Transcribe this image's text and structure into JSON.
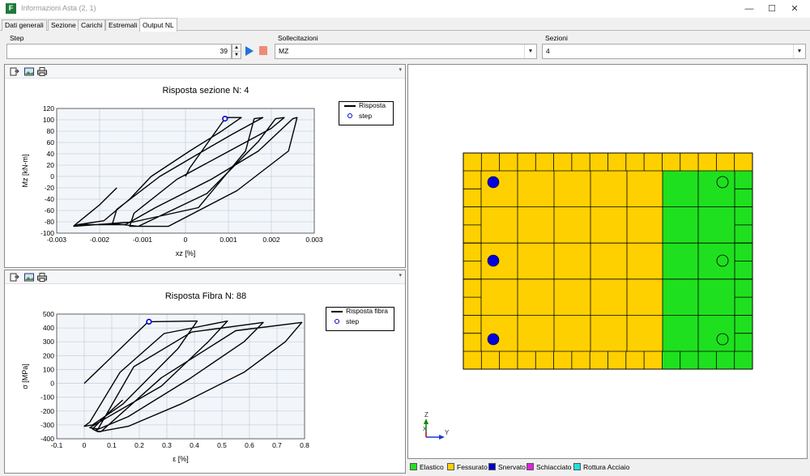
{
  "window": {
    "title": "Informazioni Asta (2, 1)",
    "icon": "F"
  },
  "tabs": [
    "Dati generali",
    "Sezione",
    "Carichi",
    "Estremali",
    "Output NL"
  ],
  "active_tab": "Output NL",
  "controls": {
    "step_label": "Step",
    "step_value": "39",
    "sollecitazioni_label": "Sollecitazioni",
    "sollecitazioni_value": "MZ",
    "sezioni_label": "Sezioni",
    "sezioni_value": "4"
  },
  "chart_data": [
    {
      "type": "line",
      "title": "Risposta sezione N: 4",
      "xlabel": "xz [%]",
      "ylabel": "Mz [kN-m]",
      "xlim": [
        -0.003,
        0.003
      ],
      "ylim": [
        -100,
        120
      ],
      "xticks": [
        "-0.003",
        "-0.002",
        "-0.001",
        "0",
        "0.001",
        "0.002",
        "0.003"
      ],
      "yticks": [
        "120",
        "100",
        "80",
        "60",
        "40",
        "20",
        "0",
        "-20",
        "-40",
        "-60",
        "-80",
        "-100"
      ],
      "legend_position": "top-right",
      "series": [
        {
          "name": "Risposta",
          "color": "#000000",
          "x": [
            0,
            0.0001,
            0.0009,
            0.0009,
            0.0013,
            0.0008,
            0.0001,
            -0.0008,
            -0.0013,
            -0.0019,
            -0.0025,
            -0.0026,
            -0.0019,
            -0.0012,
            0.0003,
            0.0014,
            0.0016,
            0.0018,
            0.0011,
            0.0003,
            -0.0006,
            -0.0016,
            -0.0017,
            -0.0011,
            0.0005,
            0.0017,
            0.0021,
            0.0023,
            0.002,
            0.0009,
            -0.0002,
            -0.0012,
            -0.0013,
            -0.0004,
            0.0012,
            0.0024,
            0.0026,
            0.0025,
            0.0017,
            0.0006,
            -0.0007,
            -0.0014,
            -0.0019,
            -0.0025,
            -0.0026,
            -0.002,
            -0.0016
          ],
          "y": [
            0,
            15,
            100,
            104,
            104,
            78,
            45,
            0,
            -40,
            -78,
            -85,
            -88,
            -84,
            -80,
            -55,
            45,
            102,
            104,
            75,
            40,
            0,
            -58,
            -83,
            -88,
            -30,
            62,
            102,
            104,
            85,
            40,
            -5,
            -65,
            -88,
            -88,
            -25,
            45,
            104,
            102,
            45,
            -5,
            -55,
            -85,
            -85,
            -85,
            -87,
            -50,
            -20
          ]
        }
      ],
      "step": {
        "name": "step",
        "x": 0.00092,
        "y": 102,
        "color": "#0000cc"
      }
    },
    {
      "type": "line",
      "title": "Risposta Fibra N: 88",
      "xlabel": "ε [%]",
      "ylabel": "σ [MPa]",
      "xlim": [
        -0.1,
        0.8
      ],
      "ylim": [
        -400,
        500
      ],
      "xticks": [
        "-0.1",
        "0",
        "0.1",
        "0.2",
        "0.3",
        "0.4",
        "0.5",
        "0.6",
        "0.7",
        "0.8"
      ],
      "yticks": [
        "500",
        "400",
        "300",
        "200",
        "100",
        "0",
        "-100",
        "-200",
        "-300",
        "-400"
      ],
      "legend_position": "top-right",
      "series": [
        {
          "name": "Risposta fibra",
          "color": "#000000",
          "x": [
            0.0,
            0.23,
            0.24,
            0.41,
            0.34,
            0.14,
            0.03,
            0.0,
            0.02,
            0.13,
            0.29,
            0.52,
            0.45,
            0.28,
            0.08,
            0.02,
            0.05,
            0.18,
            0.39,
            0.65,
            0.58,
            0.38,
            0.16,
            0.04,
            0.06,
            0.28,
            0.55,
            0.79,
            0.73,
            0.58,
            0.35,
            0.16,
            0.05,
            0.03,
            0.09,
            0.14
          ],
          "y": [
            0,
            440,
            445,
            450,
            250,
            -150,
            -300,
            -310,
            -280,
            80,
            360,
            450,
            300,
            -20,
            -250,
            -320,
            -330,
            120,
            370,
            440,
            300,
            30,
            -240,
            -340,
            -350,
            40,
            380,
            440,
            300,
            80,
            -150,
            -310,
            -350,
            -330,
            -210,
            -120
          ]
        }
      ],
      "step": {
        "name": "step",
        "x": 0.235,
        "y": 445,
        "color": "#0000cc"
      }
    }
  ],
  "section_view": {
    "axis_labels": {
      "vertical": "Z",
      "horizontal": "Y",
      "origin": "X"
    },
    "colors": {
      "fessurato": "#ffd000",
      "elastico": "#1fe01f",
      "snervato": "#0000dd",
      "grid": "#000000"
    }
  },
  "legend": [
    {
      "label": "Elastico",
      "color": "#22e022"
    },
    {
      "label": "Fessurato",
      "color": "#ffd000"
    },
    {
      "label": "Snervato",
      "color": "#0000cc"
    },
    {
      "label": "Schiacciato",
      "color": "#e020e0"
    },
    {
      "label": "Rottura Acciaio",
      "color": "#20e0e0"
    }
  ]
}
